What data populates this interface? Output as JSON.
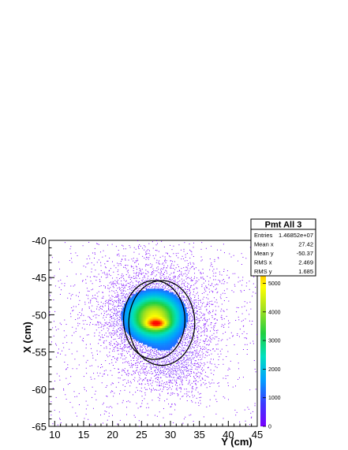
{
  "chart_data": {
    "type": "heatmap",
    "xlabel": "Y (cm)",
    "ylabel": "X (cm)",
    "xlim": [
      9,
      45
    ],
    "ylim": [
      -65,
      -40
    ],
    "x_ticks": [
      10,
      15,
      20,
      25,
      30,
      35,
      40,
      45
    ],
    "y_ticks": [
      -40,
      -45,
      -50,
      -55,
      -60,
      -65
    ],
    "colorbar": {
      "range": [
        0,
        6500
      ],
      "ticks": [
        0,
        1000,
        2000,
        3000,
        4000,
        5000,
        6000
      ],
      "palette": [
        "#7a00ff",
        "#3a3aff",
        "#00a0ff",
        "#00e0c0",
        "#20d040",
        "#a0e020",
        "#ffff00",
        "#ff9000",
        "#ff0000"
      ]
    },
    "density_blobs": [
      {
        "x": 27.4,
        "y": -50.4,
        "sx": 6.0,
        "sy": 4.8,
        "peak": 900
      },
      {
        "x": 30.5,
        "y": -56.5,
        "sx": 3.2,
        "sy": 2.2,
        "peak": 700
      },
      {
        "x": 27.2,
        "y": -50.2,
        "sx": 3.0,
        "sy": 1.9,
        "peak": 3800
      },
      {
        "x": 27.6,
        "y": -51.2,
        "sx": 1.3,
        "sy": 0.45,
        "peak": 2500
      }
    ],
    "circles": [
      {
        "x": 27.2,
        "y": -50.7,
        "r": 5.3
      },
      {
        "x": 28.5,
        "y": -51.1,
        "r": 5.7
      }
    ],
    "stats": {
      "title": "Pmt All 3",
      "rows": [
        {
          "label": "Entries",
          "value": "1.46852e+07"
        },
        {
          "label": "Mean x",
          "value": "27.42"
        },
        {
          "label": "Mean y",
          "value": "-50.37"
        },
        {
          "label": "RMS x",
          "value": "2.469"
        },
        {
          "label": "RMS y",
          "value": "1.685"
        }
      ]
    }
  }
}
